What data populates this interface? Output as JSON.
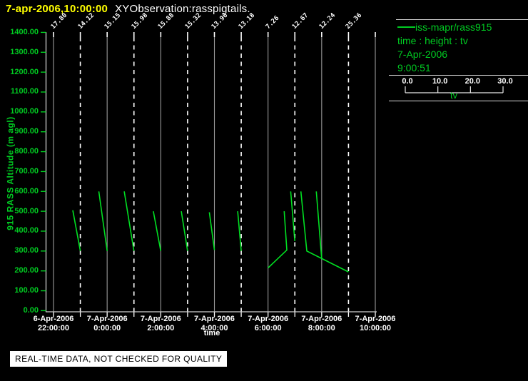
{
  "window": {
    "title_time": "7-apr-2006,10:00:00",
    "title_app": "XYObservation:rasspigtails."
  },
  "legend": {
    "series": "iss-mapr/rass915",
    "mapping": "time : height : tv",
    "date": "7-Apr-2006",
    "time": "9:00:51",
    "axis_ticks": [
      "0.0",
      "10.0",
      "20.0",
      "30.0"
    ],
    "axis_label": "tv"
  },
  "banner": {
    "text": "REAL-TIME DATA, NOT CHECKED FOR QUALITY"
  },
  "colors": {
    "green": "#00cc22",
    "trace_green": "#00e022",
    "yellow": "#ffff00",
    "white": "#ffffff",
    "grid_gray": "#9a9a9a",
    "background": "#000000"
  },
  "chart_data": {
    "type": "line",
    "title": "XYObservation:rasspigtails.",
    "ylabel": "915 RASS Altitude (m agl)",
    "xlabel": "time",
    "ylim": [
      0,
      1400
    ],
    "y_tick_labels": [
      "0.00",
      "100.00",
      "200.00",
      "300.00",
      "400.00",
      "500.00",
      "600.00",
      "700.00",
      "800.00",
      "900.00",
      "1000.00",
      "1100.00",
      "1200.00",
      "1300.00",
      "1400.00"
    ],
    "x_range_hours": [
      0,
      12
    ],
    "x_ticks": [
      {
        "hour": 0,
        "date": "6-Apr-2006",
        "time": "22:00:00"
      },
      {
        "hour": 2,
        "date": "7-Apr-2006",
        "time": "0:00:00"
      },
      {
        "hour": 4,
        "date": "7-Apr-2006",
        "time": "2:00:00"
      },
      {
        "hour": 6,
        "date": "7-Apr-2006",
        "time": "4:00:00"
      },
      {
        "hour": 8,
        "date": "7-Apr-2006",
        "time": "6:00:00"
      },
      {
        "hour": 10,
        "date": "7-Apr-2006",
        "time": "8:00:00"
      },
      {
        "hour": 12,
        "date": "7-Apr-2006",
        "time": "10:00:00"
      }
    ],
    "gridlines": {
      "solid_hours": [
        0,
        2,
        4,
        6,
        8,
        10,
        12
      ],
      "dashed_hours": [
        1,
        3,
        5,
        7,
        9,
        11
      ]
    },
    "surface_tv_labels": [
      {
        "hour": 0,
        "tv": "17.80"
      },
      {
        "hour": 1,
        "tv": "14.12"
      },
      {
        "hour": 2,
        "tv": "15.15"
      },
      {
        "hour": 3,
        "tv": "15.98"
      },
      {
        "hour": 4,
        "tv": "15.88"
      },
      {
        "hour": 5,
        "tv": "15.32"
      },
      {
        "hour": 6,
        "tv": "13.96"
      },
      {
        "hour": 7,
        "tv": "13.18"
      },
      {
        "hour": 8,
        "tv": "7.26"
      },
      {
        "hour": 9,
        "tv": "12.67"
      },
      {
        "hour": 10,
        "tv": "12.24"
      },
      {
        "hour": 11,
        "tv": "25.36"
      }
    ],
    "profiles": [
      {
        "hour": 1,
        "points": [
          {
            "alt": 300,
            "tv": 14.12
          },
          {
            "alt": 505,
            "tv": 11.8
          }
        ]
      },
      {
        "hour": 2,
        "points": [
          {
            "alt": 300,
            "tv": 15.15
          },
          {
            "alt": 600,
            "tv": 12.6
          }
        ]
      },
      {
        "hour": 3,
        "points": [
          {
            "alt": 300,
            "tv": 15.98
          },
          {
            "alt": 600,
            "tv": 13.0
          }
        ]
      },
      {
        "hour": 4,
        "points": [
          {
            "alt": 300,
            "tv": 15.88
          },
          {
            "alt": 500,
            "tv": 13.6
          }
        ]
      },
      {
        "hour": 5,
        "points": [
          {
            "alt": 300,
            "tv": 15.32
          },
          {
            "alt": 500,
            "tv": 13.4
          }
        ]
      },
      {
        "hour": 6,
        "points": [
          {
            "alt": 305,
            "tv": 13.96
          },
          {
            "alt": 495,
            "tv": 12.4
          }
        ]
      },
      {
        "hour": 7,
        "points": [
          {
            "alt": 300,
            "tv": 13.18
          },
          {
            "alt": 500,
            "tv": 12.1
          }
        ]
      },
      {
        "hour": 8,
        "points": [
          {
            "alt": 215,
            "tv": 7.26
          },
          {
            "alt": 305,
            "tv": 13.0
          },
          {
            "alt": 500,
            "tv": 12.2
          }
        ]
      },
      {
        "hour": 9,
        "points": [
          {
            "alt": 350,
            "tv": 12.67
          },
          {
            "alt": 600,
            "tv": 11.4
          }
        ]
      },
      {
        "hour": 10,
        "points": [
          {
            "alt": 265,
            "tv": 12.24
          },
          {
            "alt": 600,
            "tv": 10.6
          }
        ]
      },
      {
        "hour": 11,
        "points": [
          {
            "alt": 195,
            "tv": 25.36
          },
          {
            "alt": 300,
            "tv": 12.6
          },
          {
            "alt": 600,
            "tv": 10.8
          }
        ]
      }
    ]
  }
}
